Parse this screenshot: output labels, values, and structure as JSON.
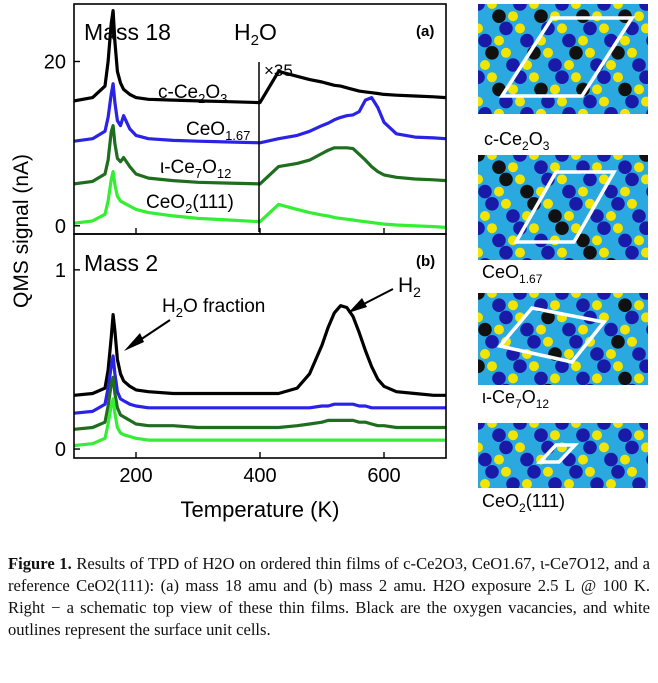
{
  "colors": {
    "c-Ce2O3": "#000000",
    "CeO1.67": "#2a22e6",
    "iota-Ce7O12": "#1f6e1f",
    "CeO2(111)": "#33ee33",
    "lattice_dark": "#111111",
    "lattice_blue": "#1a1aa8",
    "lattice_cyan": "#29a9e0",
    "lattice_yellow": "#f2e600",
    "outline": "#ffffff"
  },
  "chart_data": {
    "type": "line",
    "xlabel": "Temperature (K)",
    "ylabel": "QMS signal (nA)",
    "xlim": [
      100,
      700
    ],
    "xticks": [
      "200",
      "400",
      "600"
    ],
    "x": [
      100,
      130,
      150,
      155,
      160,
      163,
      166,
      170,
      175,
      180,
      190,
      200,
      220,
      260,
      300,
      350,
      400,
      430,
      460,
      480,
      500,
      510,
      520,
      530,
      540,
      550,
      560,
      570,
      580,
      590,
      600,
      620,
      650,
      680,
      700
    ],
    "panels": [
      {
        "id": "a",
        "tag": "(a)",
        "label": "Mass 18",
        "species": "H2O",
        "multiplier": "×35",
        "multiplier_from_x": 400,
        "ylim": [
          -1,
          27
        ],
        "yticks": [
          "0",
          "20"
        ],
        "series": [
          {
            "name": "c-Ce2O3",
            "values": [
              15.2,
              15.6,
              17.0,
              20.0,
              24.6,
              26.2,
              22.4,
              18.8,
              17.4,
              16.6,
              16.0,
              15.6,
              15.4,
              15.3,
              15.2,
              15.1,
              15.0,
              18.8,
              18.2,
              17.8,
              17.5,
              17.3,
              17.1,
              17.0,
              16.8,
              16.6,
              16.4,
              16.3,
              16.2,
              16.1,
              16.0,
              15.9,
              15.8,
              15.7,
              15.6
            ]
          },
          {
            "name": "CeO1.67",
            "values": [
              10.3,
              10.6,
              11.5,
              13.2,
              16.0,
              17.3,
              15.0,
              12.8,
              12.2,
              13.4,
              11.8,
              11.0,
              10.6,
              10.4,
              10.3,
              10.2,
              10.1,
              10.6,
              11.0,
              11.5,
              12.2,
              12.5,
              12.9,
              13.2,
              13.4,
              13.5,
              13.9,
              15.3,
              15.6,
              14.4,
              12.6,
              11.2,
              10.8,
              10.7,
              10.6
            ]
          },
          {
            "name": "ι-Ce7O12",
            "values": [
              5.1,
              5.4,
              6.3,
              8.0,
              11.4,
              12.2,
              10.0,
              8.2,
              7.8,
              8.3,
              7.2,
              6.3,
              5.8,
              5.5,
              5.3,
              5.2,
              5.1,
              7.2,
              7.6,
              8.0,
              8.8,
              9.2,
              9.5,
              9.5,
              9.5,
              9.4,
              8.7,
              8.0,
              7.2,
              6.6,
              6.2,
              5.9,
              5.7,
              5.6,
              5.5
            ]
          },
          {
            "name": "CeO2(111)",
            "values": [
              0.3,
              0.6,
              1.4,
              3.0,
              5.6,
              6.6,
              5.0,
              3.6,
              3.0,
              2.8,
              2.4,
              2.0,
              1.6,
              1.2,
              0.9,
              0.7,
              0.5,
              2.6,
              2.0,
              1.6,
              1.3,
              1.2,
              1.0,
              0.9,
              0.8,
              0.7,
              0.6,
              0.5,
              0.4,
              0.3,
              0.2,
              0.1,
              0.0,
              -0.1,
              -0.2
            ]
          }
        ]
      },
      {
        "id": "b",
        "tag": "(b)",
        "label": "Mass 2",
        "ylim": [
          -0.05,
          1.2
        ],
        "yticks": [
          "0",
          "1"
        ],
        "annotations": {
          "fraction": "H2O fraction",
          "peak": "H2"
        },
        "series": [
          {
            "name": "c-Ce2O3",
            "values": [
              0.3,
              0.31,
              0.34,
              0.44,
              0.62,
              0.75,
              0.66,
              0.5,
              0.42,
              0.38,
              0.35,
              0.33,
              0.32,
              0.31,
              0.31,
              0.31,
              0.31,
              0.31,
              0.34,
              0.42,
              0.58,
              0.68,
              0.76,
              0.8,
              0.79,
              0.74,
              0.65,
              0.55,
              0.46,
              0.39,
              0.35,
              0.32,
              0.31,
              0.3,
              0.3
            ]
          },
          {
            "name": "CeO1.67",
            "values": [
              0.2,
              0.21,
              0.25,
              0.34,
              0.46,
              0.52,
              0.42,
              0.32,
              0.28,
              0.27,
              0.25,
              0.24,
              0.23,
              0.23,
              0.23,
              0.23,
              0.23,
              0.23,
              0.23,
              0.23,
              0.24,
              0.24,
              0.25,
              0.25,
              0.25,
              0.25,
              0.24,
              0.24,
              0.23,
              0.23,
              0.23,
              0.23,
              0.23,
              0.23,
              0.23
            ]
          },
          {
            "name": "ι-Ce7O12",
            "values": [
              0.11,
              0.12,
              0.15,
              0.24,
              0.36,
              0.4,
              0.31,
              0.23,
              0.19,
              0.18,
              0.16,
              0.14,
              0.13,
              0.13,
              0.12,
              0.12,
              0.12,
              0.12,
              0.13,
              0.14,
              0.15,
              0.16,
              0.16,
              0.16,
              0.16,
              0.16,
              0.15,
              0.15,
              0.14,
              0.13,
              0.13,
              0.12,
              0.12,
              0.12,
              0.12
            ]
          },
          {
            "name": "CeO2(111)",
            "values": [
              0.02,
              0.03,
              0.06,
              0.14,
              0.24,
              0.28,
              0.2,
              0.12,
              0.09,
              0.08,
              0.07,
              0.06,
              0.05,
              0.05,
              0.05,
              0.05,
              0.05,
              0.05,
              0.05,
              0.05,
              0.05,
              0.05,
              0.05,
              0.05,
              0.05,
              0.05,
              0.05,
              0.05,
              0.05,
              0.05,
              0.05,
              0.05,
              0.05,
              0.05,
              0.05
            ]
          }
        ]
      }
    ]
  },
  "curve_labels": {
    "c_ce2o3": {
      "main": "c-Ce",
      "s1": "2",
      "mid": "O",
      "s2": "3"
    },
    "ceo167": {
      "main": "CeO",
      "s1": "1.67"
    },
    "iota": {
      "main": "ι-Ce",
      "s1": "7",
      "mid": "O",
      "s2": "12"
    },
    "ceo2": {
      "main": "CeO",
      "s1": "2",
      "tail": "(111)"
    }
  },
  "structures": [
    {
      "label_main": "c-Ce",
      "s1": "2",
      "label_mid": "O",
      "s2": "3"
    },
    {
      "label_main": "CeO",
      "s1": "1.67",
      "label_mid": "",
      "s2": ""
    },
    {
      "label_main": "ι-Ce",
      "s1": "7",
      "label_mid": "O",
      "s2": "12"
    },
    {
      "label_main": "CeO",
      "s1": "2",
      "label_mid": "(111)",
      "s2": ""
    }
  ],
  "caption": {
    "lead": "Figure 1.",
    "text": "Results of TPD of H2O on ordered thin films of c-Ce2O3, CeO1.67, ι-Ce7O12, and a reference CeO2(111): (a) mass 18 amu and (b) mass 2 amu. H2O exposure 2.5 L @ 100 K. Right − a schematic top view of these thin films. Black are the oxygen vacancies, and white outlines represent the surface unit cells."
  }
}
